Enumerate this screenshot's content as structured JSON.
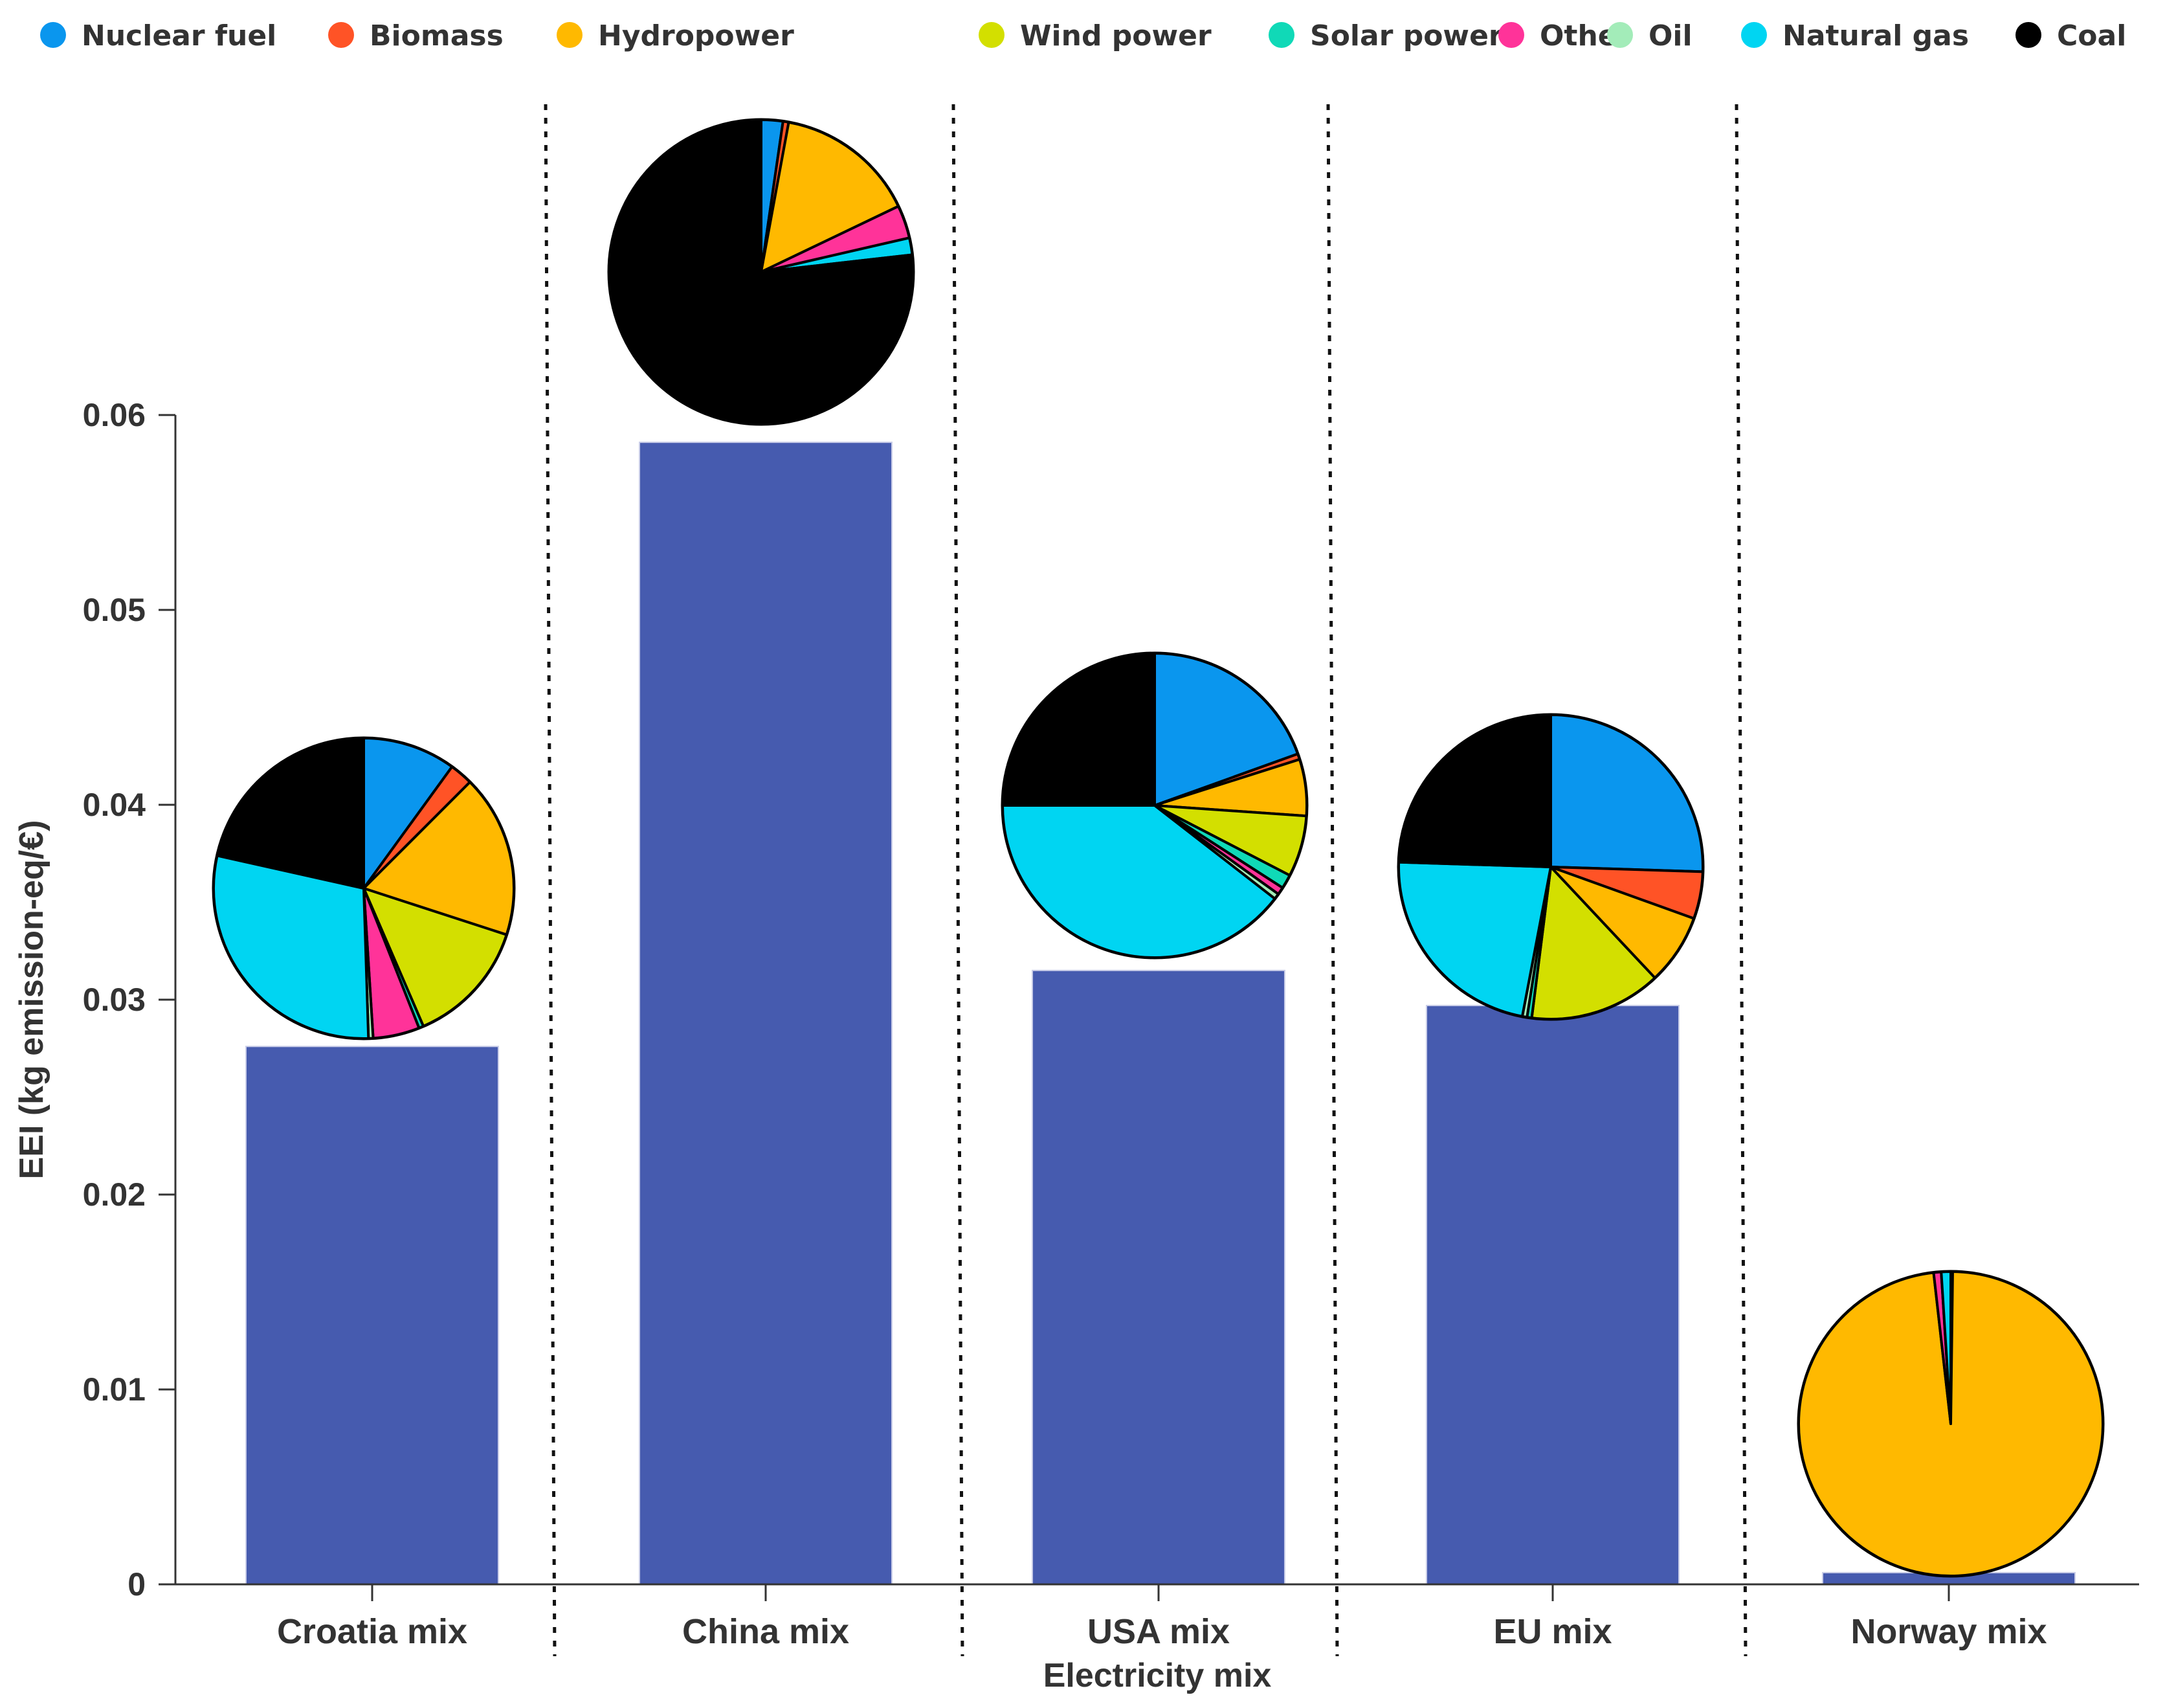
{
  "chart_data": {
    "type": "bar",
    "title": "",
    "xlabel": "Electricity mix",
    "ylabel": "EEI (kg emission-eq/€)",
    "ylim": [
      0,
      0.06
    ],
    "yticks": [
      0,
      0.01,
      0.02,
      0.03,
      0.04,
      0.05,
      0.06
    ],
    "ytick_labels": [
      "0",
      "0.01",
      "0.02",
      "0.03",
      "0.04",
      "0.05",
      "0.06"
    ],
    "categories": [
      "Croatia mix",
      "China mix",
      "USA mix",
      "EU mix",
      "Norway mix"
    ],
    "values": [
      0.0276,
      0.0586,
      0.0315,
      0.0297,
      0.0006
    ],
    "bar_color": "#465BAF",
    "legend_position": "top",
    "legend": [
      {
        "label": "Nuclear fuel",
        "color": "#0A96EE"
      },
      {
        "label": "Biomass",
        "color": "#FF5326"
      },
      {
        "label": "Hydropower",
        "color": "#FFB900"
      },
      {
        "label": "Wind power",
        "color": "#D3DF00"
      },
      {
        "label": "Solar power",
        "color": "#10D9B7"
      },
      {
        "label": "Other",
        "color": "#FF3399"
      },
      {
        "label": "Oil",
        "color": "#A3ECB9"
      },
      {
        "label": "Natural gas",
        "color": "#00D5F2"
      },
      {
        "label": "Coal",
        "color": "#000000"
      }
    ],
    "pies": [
      {
        "category": "Croatia mix",
        "shares": {
          "Nuclear fuel": 10,
          "Biomass": 2.5,
          "Hydropower": 17.5,
          "Wind power": 13.5,
          "Solar power": 0.5,
          "Other": 5,
          "Oil": 0.5,
          "Natural gas": 29,
          "Coal": 21.5
        }
      },
      {
        "category": "China mix",
        "shares": {
          "Nuclear fuel": 2.3,
          "Biomass": 0.6,
          "Hydropower": 15,
          "Wind power": 0,
          "Solar power": 0,
          "Other": 3.5,
          "Oil": 0,
          "Natural gas": 1.8,
          "Coal": 76.8
        }
      },
      {
        "category": "USA mix",
        "shares": {
          "Nuclear fuel": 19.5,
          "Biomass": 0.6,
          "Hydropower": 6,
          "Wind power": 6.5,
          "Solar power": 1.5,
          "Other": 0.8,
          "Oil": 0.6,
          "Natural gas": 39.5,
          "Coal": 25
        }
      },
      {
        "category": "EU mix",
        "shares": {
          "Nuclear fuel": 25.5,
          "Biomass": 5,
          "Hydropower": 7.5,
          "Wind power": 14,
          "Solar power": 0.5,
          "Other": 0,
          "Oil": 0.5,
          "Natural gas": 22.5,
          "Coal": 24.5
        }
      },
      {
        "category": "Norway mix",
        "shares": {
          "Nuclear fuel": 0,
          "Biomass": 0.2,
          "Hydropower": 98,
          "Wind power": 0,
          "Solar power": 0,
          "Other": 0.8,
          "Oil": 0,
          "Natural gas": 1,
          "Coal": 0
        }
      }
    ]
  }
}
